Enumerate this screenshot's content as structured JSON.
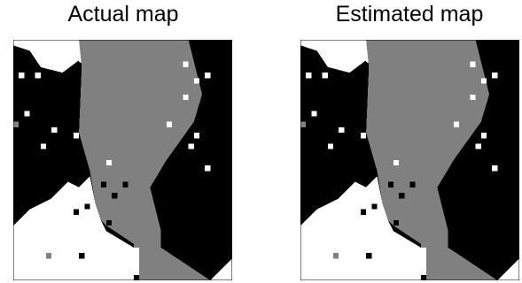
{
  "panels": [
    {
      "id": "actual",
      "title": "Actual map"
    },
    {
      "id": "estimated",
      "title": "Estimated map"
    }
  ],
  "legend_colors": {
    "class_black": "#000000",
    "class_gray": "#808080",
    "class_white": "#ffffff",
    "frame": "#000000"
  },
  "grid": {
    "cols": 40,
    "rows": 44
  },
  "regions": {
    "white_top": [
      [
        -1,
        0
      ],
      [
        -1,
        4
      ],
      [
        15,
        15
      ],
      [
        16,
        6
      ],
      [
        -1,
        0
      ]
    ],
    "gray_top": [
      [
        11,
        0
      ],
      [
        12,
        5
      ],
      [
        12,
        5.8
      ],
      [
        -1,
        -1
      ]
    ],
    "gray_center": [
      [
        12,
        0
      ],
      [
        32,
        0
      ],
      [
        34.5,
        10
      ],
      [
        33,
        15
      ],
      [
        28,
        22
      ],
      [
        25,
        27
      ],
      [
        26,
        31
      ],
      [
        27,
        35
      ],
      [
        27,
        38
      ],
      [
        23,
        38
      ],
      [
        17,
        34
      ],
      [
        15,
        32
      ],
      [
        15,
        30
      ],
      [
        14,
        24
      ],
      [
        12,
        17
      ],
      [
        12.5,
        5
      ]
    ],
    "gray_bottom_right": [
      [
        27,
        38
      ],
      [
        36,
        44
      ],
      [
        23,
        44
      ],
      [
        23,
        38
      ]
    ],
    "white_bottom_left": [
      [
        0,
        34
      ],
      [
        3,
        31
      ],
      [
        7,
        29
      ],
      [
        10,
        26
      ],
      [
        12,
        27
      ],
      [
        14,
        25
      ],
      [
        15,
        30
      ],
      [
        16,
        33
      ],
      [
        17,
        35
      ],
      [
        22,
        38
      ],
      [
        23,
        38
      ],
      [
        23,
        44
      ],
      [
        0,
        44
      ]
    ],
    "white_corner_br": [
      [
        36,
        44
      ],
      [
        40,
        40
      ],
      [
        40,
        44
      ]
    ]
  },
  "dots": {
    "white": [
      [
        31,
        4
      ],
      [
        5,
        19
      ],
      [
        2,
        13
      ],
      [
        4,
        6
      ],
      [
        11,
        17
      ],
      [
        28,
        15
      ],
      [
        33,
        17
      ],
      [
        32,
        19
      ],
      [
        35,
        23
      ],
      [
        14,
        21
      ],
      [
        17,
        22
      ],
      [
        35,
        6
      ],
      [
        33,
        7
      ],
      [
        31,
        10
      ],
      [
        1,
        6
      ],
      [
        7,
        16
      ]
    ],
    "black": [
      [
        13,
        30
      ],
      [
        17,
        33
      ],
      [
        12,
        39
      ],
      [
        22,
        43
      ],
      [
        11,
        31
      ],
      [
        26,
        30
      ],
      [
        20,
        26
      ],
      [
        16,
        26
      ],
      [
        18,
        28
      ]
    ],
    "gray": [
      [
        0,
        15
      ],
      [
        14,
        21
      ],
      [
        6,
        39
      ],
      [
        22,
        37
      ]
    ]
  }
}
